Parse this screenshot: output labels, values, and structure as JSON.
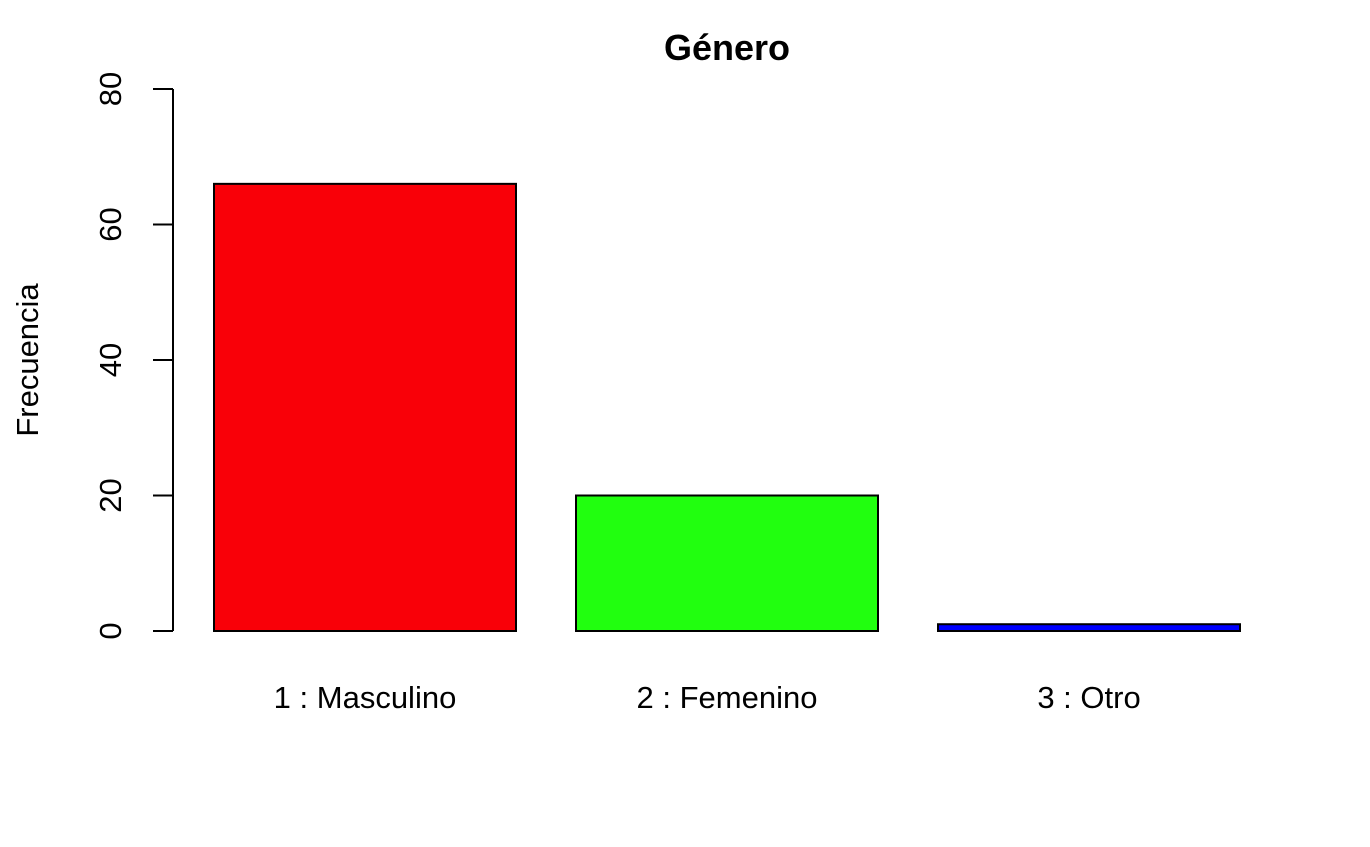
{
  "chart_data": {
    "type": "bar",
    "title": "Género",
    "xlabel": "",
    "ylabel": "Frecuencia",
    "categories": [
      "1 : Masculino",
      "2 : Femenino",
      "3 : Otro"
    ],
    "values": [
      66,
      20,
      1
    ],
    "colors": [
      "#f90008",
      "#21ff0f",
      "#0000ff"
    ],
    "ylim": [
      0,
      80
    ],
    "yticks": [
      0,
      20,
      40,
      60,
      80
    ],
    "ytick_labels": [
      "0",
      "20",
      "40",
      "60",
      "80"
    ],
    "grid": false,
    "legend": "none"
  }
}
